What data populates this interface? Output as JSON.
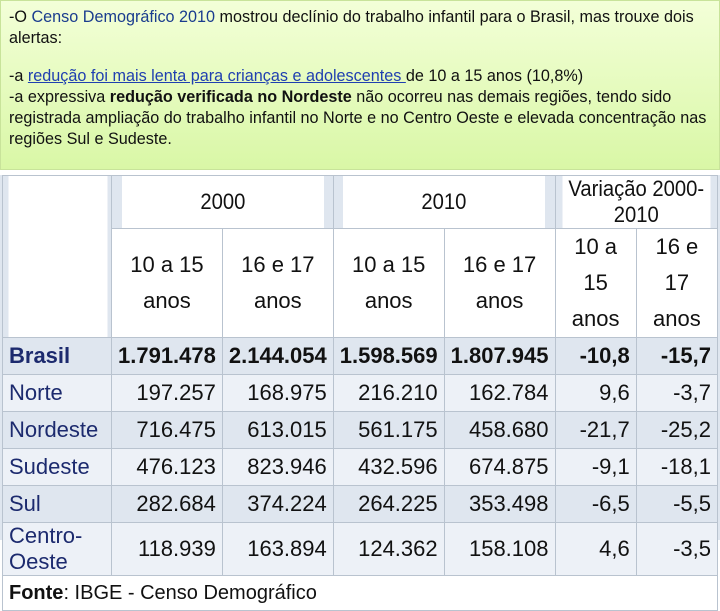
{
  "intro": {
    "prefix": "-O ",
    "census": "Censo Demográfico 2010",
    "rest": " mostrou declínio do trabalho infantil para o Brasil, mas trouxe dois alertas:"
  },
  "alert1": {
    "prefix": "-a ",
    "link": "redução foi mais lenta para crianças e adolescentes ",
    "rest": " de 10 a 15 anos (10,8%)"
  },
  "alert2": {
    "prefix": "-a expressiva ",
    "bold": "redução verificada no Nordeste",
    "rest": " não ocorreu nas demais regiões, tendo sido registrada ampliação do trabalho infantil no Norte e no Centro Oeste e elevada concentração nas regiões Sul e Sudeste."
  },
  "table": {
    "years": [
      "2000",
      "2010",
      "Variação 2000-2010"
    ],
    "ages": [
      "10 a 15 anos",
      "16 e 17 anos",
      "10 a 15 anos",
      "16 e 17 anos",
      "10 a 15 anos",
      "16 e 17 anos"
    ],
    "rows": [
      {
        "label": "Brasil",
        "cells": [
          "1.791.478",
          "2.144.054",
          "1.598.569",
          "1.807.945",
          "-10,8",
          "-15,7"
        ]
      },
      {
        "label": "Norte",
        "cells": [
          "197.257",
          "168.975",
          "216.210",
          "162.784",
          "9,6",
          "-3,7"
        ]
      },
      {
        "label": "Nordeste",
        "cells": [
          "716.475",
          "613.015",
          "561.175",
          "458.680",
          "-21,7",
          "-25,2"
        ]
      },
      {
        "label": "Sudeste",
        "cells": [
          "476.123",
          "823.946",
          "432.596",
          "674.875",
          "-9,1",
          "-18,1"
        ]
      },
      {
        "label": "Sul",
        "cells": [
          "282.684",
          "374.224",
          "264.225",
          "353.498",
          "-6,5",
          "-5,5"
        ]
      },
      {
        "label": "Centro-Oeste",
        "cells": [
          "118.939",
          "163.894",
          "124.362",
          "158.108",
          "4,6",
          "-3,5"
        ]
      }
    ],
    "source_label": "Fonte",
    "source_text": ": IBGE - Censo Demográfico"
  }
}
